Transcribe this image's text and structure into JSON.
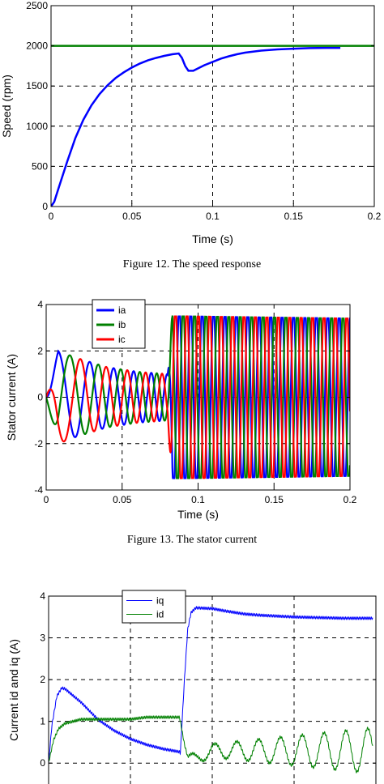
{
  "chart_data": [
    {
      "type": "line",
      "caption": "Figure 12. The speed response",
      "xlabel": "Time (s)",
      "ylabel": "Speed (rpm)",
      "xlim": [
        0,
        0.2
      ],
      "ylim": [
        0,
        2500
      ],
      "xticks": [
        "0",
        "0.05",
        "0.1",
        "0.15",
        "0.2"
      ],
      "yticks": [
        "0",
        "500",
        "1000",
        "1500",
        "2000",
        "2500"
      ],
      "grid": true,
      "series": [
        {
          "color": "#0000ff",
          "x": [
            0,
            0.002,
            0.005,
            0.01,
            0.015,
            0.02,
            0.025,
            0.03,
            0.035,
            0.04,
            0.045,
            0.05,
            0.055,
            0.06,
            0.065,
            0.07,
            0.075,
            0.079,
            0.081,
            0.083,
            0.085,
            0.088,
            0.09,
            0.095,
            0.1,
            0.105,
            0.11,
            0.115,
            0.12,
            0.13,
            0.14,
            0.15,
            0.16,
            0.17,
            0.179
          ],
          "y": [
            0,
            60,
            250,
            560,
            850,
            1080,
            1260,
            1400,
            1510,
            1600,
            1670,
            1730,
            1780,
            1820,
            1850,
            1875,
            1895,
            1905,
            1850,
            1750,
            1690,
            1690,
            1710,
            1760,
            1800,
            1840,
            1870,
            1895,
            1915,
            1940,
            1955,
            1965,
            1972,
            1975,
            1975
          ]
        },
        {
          "color": "#008000",
          "x": [
            0,
            0.2
          ],
          "y": [
            2000,
            2000
          ]
        }
      ]
    },
    {
      "type": "line",
      "caption": "Figure 13. The stator current",
      "xlabel": "Time (s)",
      "ylabel": "Stator current (A)",
      "xlim": [
        0,
        0.2
      ],
      "ylim": [
        -4,
        4
      ],
      "xticks": [
        "0",
        "0.05",
        "0.1",
        "0.15",
        "0.2"
      ],
      "yticks": [
        "-4",
        "-2",
        "0",
        "2",
        "4"
      ],
      "grid": true,
      "legend_position": "top-left",
      "series": [
        {
          "name": "ia",
          "color": "#0000ff",
          "phase_deg": 0
        },
        {
          "name": "ib",
          "color": "#008000",
          "phase_deg": -120
        },
        {
          "name": "ic",
          "color": "#ff0000",
          "phase_deg": 120
        }
      ],
      "envelope": {
        "t": [
          0,
          0.008,
          0.02,
          0.04,
          0.06,
          0.08,
          0.083,
          0.09,
          0.2
        ],
        "amplitude": [
          0,
          2.0,
          1.7,
          1.3,
          1.1,
          1.0,
          3.6,
          3.6,
          3.5
        ]
      },
      "frequency_hz": {
        "t": [
          0,
          0.01,
          0.03,
          0.05,
          0.08,
          0.083,
          0.2
        ],
        "f": [
          28,
          40,
          58,
          75,
          100,
          133,
          133
        ]
      }
    },
    {
      "type": "line",
      "xlabel": "",
      "ylabel": "Current id and iq (A)",
      "xlim": [
        0,
        0.2
      ],
      "ylim": [
        -0.5,
        4
      ],
      "yticks": [
        "0",
        "1",
        "2",
        "3",
        "4"
      ],
      "grid": true,
      "legend_position": "top",
      "series": [
        {
          "name": "iq",
          "color": "#0000ff",
          "x": [
            0,
            0.002,
            0.005,
            0.008,
            0.01,
            0.02,
            0.03,
            0.04,
            0.05,
            0.06,
            0.07,
            0.08,
            0.0805,
            0.083,
            0.085,
            0.087,
            0.09,
            0.1,
            0.11,
            0.12,
            0.13,
            0.14,
            0.15,
            0.16,
            0.17,
            0.18,
            0.198
          ],
          "y": [
            0,
            0.9,
            1.6,
            1.8,
            1.78,
            1.45,
            1.05,
            0.78,
            0.58,
            0.44,
            0.34,
            0.27,
            0.24,
            2.0,
            3.2,
            3.6,
            3.72,
            3.7,
            3.63,
            3.57,
            3.54,
            3.52,
            3.5,
            3.49,
            3.48,
            3.47,
            3.47
          ]
        },
        {
          "name": "id",
          "color": "#008000",
          "x": [
            0,
            0.003,
            0.006,
            0.01,
            0.02,
            0.03,
            0.04,
            0.05,
            0.06,
            0.07,
            0.08,
            0.0805,
            0.083,
            0.085,
            0.09,
            0.1,
            0.12,
            0.14,
            0.16,
            0.18,
            0.198
          ],
          "y": [
            0,
            0.55,
            0.82,
            0.95,
            1.05,
            1.05,
            1.05,
            1.05,
            1.1,
            1.1,
            1.1,
            1.0,
            0.45,
            0.15,
            0.1,
            0.3,
            0.3,
            0.3,
            0.3,
            0.3,
            0.3
          ]
        }
      ],
      "id_ripple": {
        "t": [
          0.085,
          0.2
        ],
        "start_amp": 0.1,
        "end_amp": 0.55,
        "frequency_hz": 75
      }
    }
  ]
}
